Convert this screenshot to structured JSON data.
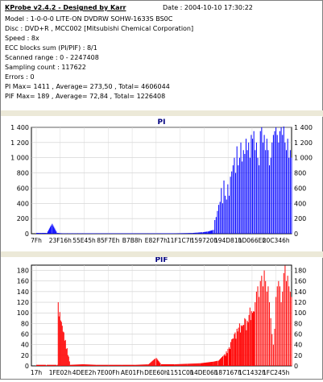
{
  "header": {
    "title": "KProbe v2.4.2 - Designed by Karr",
    "date": "Date : 2004-10-10 17:30:22",
    "model": "Model : 1-0-0-0 LITE-ON DVDRW SOHW-1633S BS0C",
    "disc": "Disc : DVD+R , MCC002 [Mitsubishi Chemical Corporation]",
    "speed": "Speed : 8x",
    "ecc": "ECC blocks sum (PI/PIF) : 8/1",
    "scanned": "Scanned range : 0 - 2247408",
    "sampling": "Sampling count : 117622",
    "errors": "Errors : 0",
    "pi_stats": "PI Max= 1411 , Average= 273,50 , Total= 4606044",
    "pif_stats": "PIF Max= 189 , Average= 72,84 , Total= 1226408"
  },
  "chart_data": [
    {
      "type": "bar",
      "title": "PI",
      "color": "#0000ff",
      "ylim": [
        0,
        1400
      ],
      "yticks": [
        0,
        200,
        400,
        600,
        800,
        1000,
        1200,
        1400
      ],
      "ytick_labels": [
        "0",
        "200",
        "400",
        "600",
        "800",
        "1 000",
        "1 200",
        "1 400"
      ],
      "xticks": [
        "7Fh",
        "23F16h",
        "55E45h",
        "85F7Eh",
        "B7B8h",
        "E82F7h",
        "11F1C7h",
        "159720h",
        "194D81h",
        "1D066Eh",
        "20C346h"
      ],
      "grid": true,
      "series": [
        {
          "x": [
            0.02,
            0.03,
            0.04,
            0.06,
            0.08,
            0.1,
            0.12,
            0.14,
            0.16,
            0.18,
            0.2,
            0.25,
            0.3,
            0.35,
            0.4,
            0.45,
            0.5,
            0.55,
            0.6,
            0.62,
            0.64,
            0.66,
            0.68,
            0.7,
            0.705,
            0.71,
            0.715,
            0.72,
            0.725,
            0.73,
            0.735,
            0.74,
            0.745,
            0.75,
            0.755,
            0.76,
            0.765,
            0.77,
            0.775,
            0.78,
            0.785,
            0.79,
            0.795,
            0.8,
            0.805,
            0.81,
            0.815,
            0.82,
            0.825,
            0.83,
            0.835,
            0.84,
            0.845,
            0.85,
            0.855,
            0.86,
            0.865,
            0.87,
            0.875,
            0.88,
            0.885,
            0.89,
            0.895,
            0.9,
            0.905,
            0.91,
            0.915,
            0.92,
            0.925,
            0.93,
            0.935,
            0.94,
            0.945,
            0.95,
            0.955,
            0.96,
            0.965,
            0.97,
            0.975,
            0.98,
            0.985,
            0.99,
            0.995,
            1.0
          ],
          "values": [
            10,
            10,
            10,
            10,
            130,
            10,
            5,
            5,
            5,
            5,
            5,
            5,
            5,
            5,
            5,
            5,
            5,
            5,
            8,
            10,
            15,
            20,
            30,
            50,
            180,
            220,
            300,
            380,
            420,
            600,
            400,
            700,
            500,
            450,
            650,
            500,
            750,
            820,
            900,
            1000,
            800,
            1150,
            900,
            1000,
            1200,
            950,
            1100,
            1050,
            1250,
            1100,
            1200,
            1000,
            1300,
            1250,
            1350,
            1100,
            1200,
            1000,
            900,
            1350,
            1400,
            1200,
            1300,
            1100,
            1250,
            1100,
            900,
            1000,
            1200,
            1300,
            1350,
            1400,
            1300,
            1200,
            1350,
            1400,
            1300,
            1411,
            1200,
            1100,
            1250,
            1000,
            1100,
            1000
          ]
        }
      ]
    },
    {
      "type": "bar",
      "title": "PIF",
      "color": "#ff0000",
      "ylim": [
        0,
        190
      ],
      "yticks": [
        0,
        20,
        40,
        60,
        80,
        100,
        120,
        140,
        160,
        180
      ],
      "ytick_labels": [
        "0",
        "20",
        "40",
        "60",
        "80",
        "100",
        "120",
        "140",
        "160",
        "180"
      ],
      "xticks": [
        "17h",
        "1FE02h",
        "4DEE2h",
        "7E00Fh",
        "AE01Fh",
        "DEE60h",
        "1151C0h",
        "14DE06h",
        "187167h",
        "1C1432h",
        "1FC245h"
      ],
      "grid": true,
      "series": [
        {
          "x": [
            0.02,
            0.06,
            0.1,
            0.103,
            0.15,
            0.2,
            0.25,
            0.3,
            0.35,
            0.4,
            0.45,
            0.48,
            0.5,
            0.55,
            0.6,
            0.65,
            0.7,
            0.72,
            0.74,
            0.76,
            0.77,
            0.78,
            0.79,
            0.8,
            0.81,
            0.82,
            0.83,
            0.84,
            0.85,
            0.86,
            0.865,
            0.87,
            0.875,
            0.88,
            0.885,
            0.89,
            0.895,
            0.9,
            0.905,
            0.91,
            0.915,
            0.92,
            0.925,
            0.93,
            0.935,
            0.94,
            0.945,
            0.95,
            0.955,
            0.96,
            0.965,
            0.97,
            0.975,
            0.98,
            0.985,
            0.99,
            0.995,
            1.0
          ],
          "values": [
            2,
            2,
            2,
            120,
            2,
            3,
            2,
            2,
            2,
            2,
            3,
            15,
            3,
            3,
            4,
            5,
            8,
            10,
            20,
            35,
            50,
            60,
            70,
            80,
            75,
            90,
            85,
            110,
            100,
            120,
            140,
            150,
            130,
            160,
            170,
            150,
            180,
            160,
            140,
            150,
            120,
            90,
            60,
            40,
            70,
            130,
            150,
            160,
            150,
            120,
            140,
            175,
            189,
            160,
            170,
            150,
            140,
            130
          ]
        }
      ]
    }
  ]
}
